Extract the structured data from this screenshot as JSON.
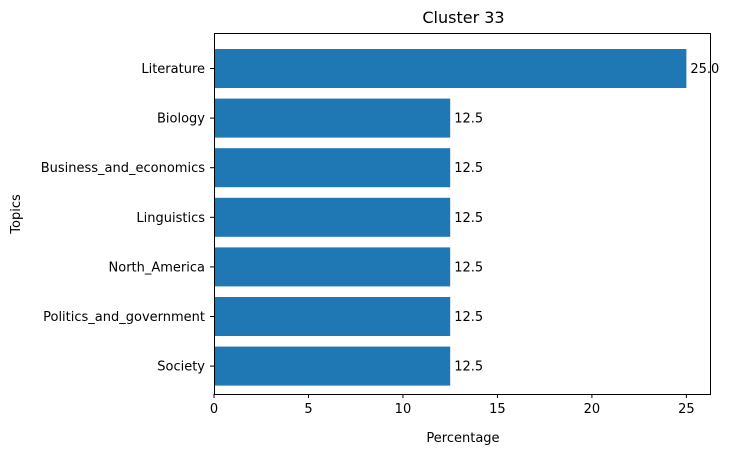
{
  "chart_data": {
    "type": "bar",
    "orientation": "horizontal",
    "title": "Cluster 33",
    "xlabel": "Percentage",
    "ylabel": "Topics",
    "categories": [
      "Literature",
      "Biology",
      "Business_and_economics",
      "Linguistics",
      "North_America",
      "Politics_and_government",
      "Society"
    ],
    "values": [
      25.0,
      12.5,
      12.5,
      12.5,
      12.5,
      12.5,
      12.5
    ],
    "data_labels": [
      "25.0",
      "12.5",
      "12.5",
      "12.5",
      "12.5",
      "12.5",
      "12.5"
    ],
    "xticks": [
      0,
      5,
      10,
      15,
      20,
      25
    ],
    "xticklabels": [
      "0",
      "5",
      "10",
      "15",
      "20",
      "25"
    ],
    "xlim": [
      0,
      26.25
    ],
    "bar_color": "#1f77b4",
    "grid": false,
    "legend": "none"
  }
}
